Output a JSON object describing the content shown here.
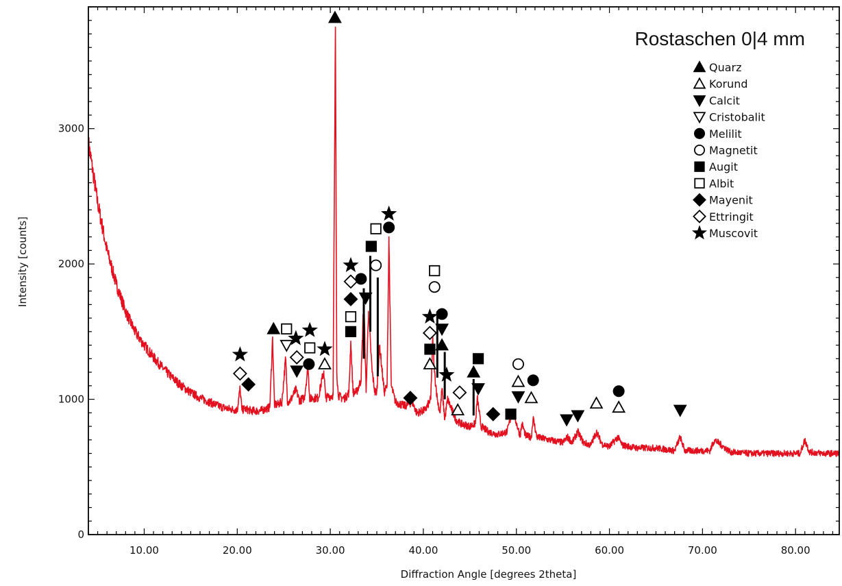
{
  "chart_data": {
    "type": "line",
    "title": "Rostaschen 0|4 mm",
    "xlabel": "Diffraction Angle [degrees 2theta]",
    "ylabel": "Intensity [counts]",
    "xlim": [
      4,
      84.7
    ],
    "ylim": [
      0,
      3900
    ],
    "x_ticks": [
      10,
      20,
      30,
      40,
      50,
      60,
      70,
      80
    ],
    "x_tick_labels": [
      "10.00",
      "20.00",
      "30.00",
      "40.00",
      "50.00",
      "60.00",
      "70.00",
      "80.00"
    ],
    "y_ticks": [
      0,
      1000,
      2000,
      3000
    ],
    "y_tick_labels": [
      "0",
      "1000",
      "2000",
      "3000"
    ],
    "grid": false,
    "legend_position": "top-right",
    "line_color": "#e3101f",
    "series": [
      {
        "x": [
          4.0,
          5.0,
          6.0,
          7.0,
          8.0,
          9.0,
          10.0,
          11.0,
          12.0,
          13.0,
          14.0,
          15.0,
          16.0,
          17.0,
          18.0,
          19.0,
          20.0,
          20.3,
          20.5,
          20.8,
          21.5,
          22.5,
          23.5,
          23.8,
          24.0,
          24.3,
          24.8,
          25.2,
          25.4,
          25.7,
          26.3,
          26.7,
          27.2,
          27.6,
          27.8,
          28.1,
          28.7,
          29.3,
          29.5,
          29.8,
          30.3,
          30.55,
          30.7,
          30.85,
          31.2,
          31.6,
          32.0,
          32.2,
          32.45,
          32.8,
          33.3,
          33.6,
          33.85,
          34.1,
          34.5,
          34.8,
          35.0,
          35.3,
          35.8,
          36.1,
          36.3,
          36.55,
          37.0,
          38.0,
          38.8,
          39.3,
          40.2,
          40.8,
          41.0,
          41.2,
          41.5,
          41.8,
          42.0,
          42.3,
          42.6,
          43.5,
          44.0,
          45.0,
          45.6,
          45.8,
          46.2,
          47.0,
          48.0,
          49.0,
          49.6,
          50.4,
          50.6,
          51.0,
          51.6,
          51.8,
          52.2,
          53.5,
          55.0,
          55.5,
          56.0,
          56.6,
          57.2,
          58.0,
          58.6,
          59.2,
          60.0,
          60.9,
          61.4,
          63.0,
          65.0,
          67.0,
          67.6,
          68.1,
          69.5,
          70.8,
          71.3,
          73.0,
          75.0,
          77.0,
          79.0,
          80.5,
          81.0,
          81.5,
          83.0,
          84.7
        ],
        "y": [
          2900,
          2450,
          2100,
          1850,
          1650,
          1500,
          1400,
          1310,
          1230,
          1160,
          1100,
          1050,
          1010,
          980,
          950,
          930,
          920,
          1080,
          920,
          930,
          915,
          915,
          940,
          1460,
          960,
          960,
          980,
          1300,
          980,
          990,
          1070,
          990,
          1010,
          1230,
          1000,
          1010,
          1010,
          1210,
          1010,
          1020,
          1030,
          3750,
          1200,
          1030,
          1010,
          1010,
          1050,
          1430,
          1050,
          1050,
          1140,
          1760,
          1050,
          1650,
          1200,
          1050,
          1060,
          1400,
          1050,
          1100,
          2200,
          1100,
          980,
          950,
          980,
          900,
          920,
          1000,
          1450,
          1200,
          1000,
          900,
          1080,
          850,
          1000,
          850,
          820,
          800,
          820,
          1010,
          800,
          760,
          740,
          760,
          920,
          730,
          820,
          730,
          720,
          860,
          720,
          700,
          680,
          720,
          680,
          760,
          680,
          660,
          760,
          670,
          650,
          720,
          660,
          640,
          640,
          620,
          720,
          620,
          620,
          620,
          700,
          610,
          600,
          600,
          600,
          600,
          700,
          610,
          600,
          600
        ]
      }
    ],
    "legend": [
      {
        "shape": "triangle-up",
        "filled": true,
        "label": "Quarz"
      },
      {
        "shape": "triangle-up",
        "filled": false,
        "label": "Korund"
      },
      {
        "shape": "triangle-down",
        "filled": true,
        "label": "Calcit"
      },
      {
        "shape": "triangle-down",
        "filled": false,
        "label": "Cristobalit"
      },
      {
        "shape": "circle",
        "filled": true,
        "label": "Melilit"
      },
      {
        "shape": "circle",
        "filled": false,
        "label": "Magnetit"
      },
      {
        "shape": "square",
        "filled": true,
        "label": "Augit"
      },
      {
        "shape": "square",
        "filled": false,
        "label": "Albit"
      },
      {
        "shape": "diamond",
        "filled": true,
        "label": "Mayenit"
      },
      {
        "shape": "diamond",
        "filled": false,
        "label": "Ettringit"
      },
      {
        "shape": "star",
        "filled": true,
        "label": "Muscovit"
      }
    ],
    "peak_markers": [
      {
        "shape": "star",
        "filled": true,
        "x": 20.3,
        "y": 1330
      },
      {
        "shape": "diamond",
        "filled": false,
        "x": 20.3,
        "y": 1190
      },
      {
        "shape": "diamond",
        "filled": true,
        "x": 21.2,
        "y": 1110
      },
      {
        "shape": "triangle-up",
        "filled": true,
        "x": 23.9,
        "y": 1520
      },
      {
        "shape": "square",
        "filled": false,
        "x": 25.3,
        "y": 1520
      },
      {
        "shape": "triangle-down",
        "filled": false,
        "x": 25.3,
        "y": 1400
      },
      {
        "shape": "star",
        "filled": true,
        "x": 26.3,
        "y": 1450
      },
      {
        "shape": "diamond",
        "filled": false,
        "x": 26.4,
        "y": 1310
      },
      {
        "shape": "triangle-down",
        "filled": true,
        "x": 26.4,
        "y": 1210
      },
      {
        "shape": "star",
        "filled": true,
        "x": 27.8,
        "y": 1510
      },
      {
        "shape": "square",
        "filled": false,
        "x": 27.8,
        "y": 1380
      },
      {
        "shape": "circle",
        "filled": true,
        "x": 27.7,
        "y": 1260
      },
      {
        "shape": "star",
        "filled": true,
        "x": 29.4,
        "y": 1370
      },
      {
        "shape": "triangle-up",
        "filled": false,
        "x": 29.4,
        "y": 1260
      },
      {
        "shape": "triangle-up",
        "filled": true,
        "x": 30.5,
        "y": 3820
      },
      {
        "shape": "star",
        "filled": true,
        "x": 32.2,
        "y": 1990
      },
      {
        "shape": "diamond",
        "filled": false,
        "x": 32.2,
        "y": 1870
      },
      {
        "shape": "diamond",
        "filled": true,
        "x": 32.2,
        "y": 1740
      },
      {
        "shape": "square",
        "filled": false,
        "x": 32.2,
        "y": 1610
      },
      {
        "shape": "square",
        "filled": true,
        "x": 32.2,
        "y": 1500
      },
      {
        "shape": "circle",
        "filled": true,
        "x": 33.3,
        "y": 1890
      },
      {
        "shape": "triangle-down",
        "filled": true,
        "x": 33.8,
        "y": 1750
      },
      {
        "shape": "square",
        "filled": true,
        "x": 34.4,
        "y": 2130
      },
      {
        "shape": "circle",
        "filled": false,
        "x": 34.9,
        "y": 1990
      },
      {
        "shape": "square",
        "filled": false,
        "x": 34.9,
        "y": 2260
      },
      {
        "shape": "star",
        "filled": true,
        "x": 36.3,
        "y": 2370
      },
      {
        "shape": "circle",
        "filled": true,
        "x": 36.3,
        "y": 2270
      },
      {
        "shape": "diamond",
        "filled": true,
        "x": 38.6,
        "y": 1010
      },
      {
        "shape": "star",
        "filled": true,
        "x": 40.7,
        "y": 1610
      },
      {
        "shape": "diamond",
        "filled": false,
        "x": 40.7,
        "y": 1490
      },
      {
        "shape": "square",
        "filled": true,
        "x": 40.7,
        "y": 1370
      },
      {
        "shape": "triangle-up",
        "filled": false,
        "x": 40.7,
        "y": 1260
      },
      {
        "shape": "square",
        "filled": false,
        "x": 41.2,
        "y": 1950
      },
      {
        "shape": "circle",
        "filled": false,
        "x": 41.2,
        "y": 1830
      },
      {
        "shape": "circle",
        "filled": true,
        "x": 42.0,
        "y": 1630
      },
      {
        "shape": "triangle-down",
        "filled": true,
        "x": 42.0,
        "y": 1520
      },
      {
        "shape": "triangle-up",
        "filled": true,
        "x": 42.0,
        "y": 1400
      },
      {
        "shape": "star",
        "filled": true,
        "x": 42.5,
        "y": 1180
      },
      {
        "shape": "diamond",
        "filled": false,
        "x": 43.9,
        "y": 1050
      },
      {
        "shape": "triangle-up",
        "filled": false,
        "x": 43.7,
        "y": 920
      },
      {
        "shape": "triangle-up",
        "filled": true,
        "x": 45.4,
        "y": 1200
      },
      {
        "shape": "square",
        "filled": true,
        "x": 45.9,
        "y": 1300
      },
      {
        "shape": "triangle-down",
        "filled": true,
        "x": 45.9,
        "y": 1080
      },
      {
        "shape": "diamond",
        "filled": true,
        "x": 47.5,
        "y": 890
      },
      {
        "shape": "square",
        "filled": true,
        "x": 49.4,
        "y": 890
      },
      {
        "shape": "circle",
        "filled": false,
        "x": 50.2,
        "y": 1260
      },
      {
        "shape": "triangle-up",
        "filled": false,
        "x": 50.2,
        "y": 1130
      },
      {
        "shape": "triangle-down",
        "filled": true,
        "x": 50.2,
        "y": 1020
      },
      {
        "shape": "circle",
        "filled": true,
        "x": 51.8,
        "y": 1140
      },
      {
        "shape": "triangle-up",
        "filled": false,
        "x": 51.6,
        "y": 1010
      },
      {
        "shape": "triangle-down",
        "filled": true,
        "x": 55.4,
        "y": 850
      },
      {
        "shape": "triangle-down",
        "filled": true,
        "x": 56.6,
        "y": 880
      },
      {
        "shape": "triangle-up",
        "filled": false,
        "x": 58.6,
        "y": 970
      },
      {
        "shape": "circle",
        "filled": true,
        "x": 61.0,
        "y": 1060
      },
      {
        "shape": "triangle-up",
        "filled": false,
        "x": 61.0,
        "y": 940
      },
      {
        "shape": "triangle-down",
        "filled": true,
        "x": 67.6,
        "y": 920
      }
    ],
    "reference_lines": [
      {
        "x": 33.6,
        "y_from": 1300,
        "y_to": 1820
      },
      {
        "x": 34.3,
        "y_from": 1500,
        "y_to": 2060
      },
      {
        "x": 35.1,
        "y_from": 1170,
        "y_to": 1900
      },
      {
        "x": 41.5,
        "y_from": 1160,
        "y_to": 1650
      },
      {
        "x": 42.3,
        "y_from": 1000,
        "y_to": 1350
      },
      {
        "x": 45.4,
        "y_from": 880,
        "y_to": 1150
      }
    ]
  }
}
